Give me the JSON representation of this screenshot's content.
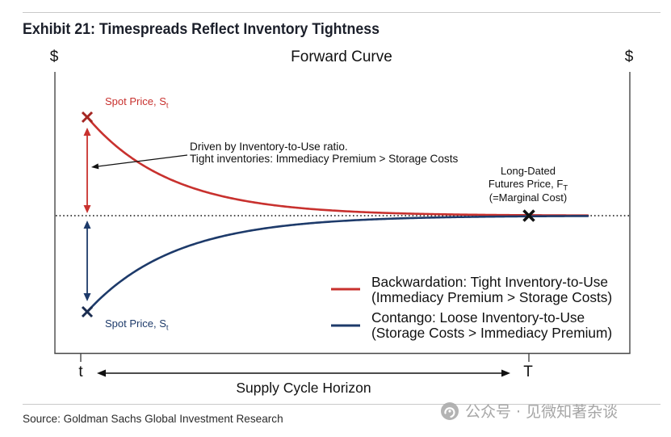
{
  "header": {
    "title": "Exhibit 21: Timespreads Reflect Inventory Tightness"
  },
  "figure": {
    "title": "Forward Curve",
    "y_label_left": "$",
    "y_label_right": "$",
    "x_ticks": [
      "t",
      "T"
    ],
    "x_span_label": "Supply Cycle Horizon",
    "spot_price_top": {
      "text": "Spot Price, S",
      "subscript": "t"
    },
    "spot_price_bottom": {
      "text": "Spot Price, S",
      "subscript": "t"
    },
    "annotation": [
      "Driven by Inventory-to-Use ratio.",
      "Tight inventories: Immediacy Premium > Storage Costs"
    ],
    "long_dated": {
      "line1": "Long-Dated",
      "line2": "Futures Price, F",
      "line2_subscript": "T",
      "line3": "(=Marginal Cost)"
    },
    "legend": [
      {
        "line1": "Backwardation: Tight Inventory-to-Use",
        "line2": "(Immediacy Premium > Storage Costs)",
        "color": "#c8312e"
      },
      {
        "line1": "Contango: Loose Inventory-to-Use",
        "line2": "(Storage Costs > Immediacy Premium)",
        "color": "#1d3a6a"
      }
    ]
  },
  "footer": {
    "source": "Source: Goldman Sachs Global Investment Research",
    "watermark": "公众号 · 见微知著杂谈"
  }
}
